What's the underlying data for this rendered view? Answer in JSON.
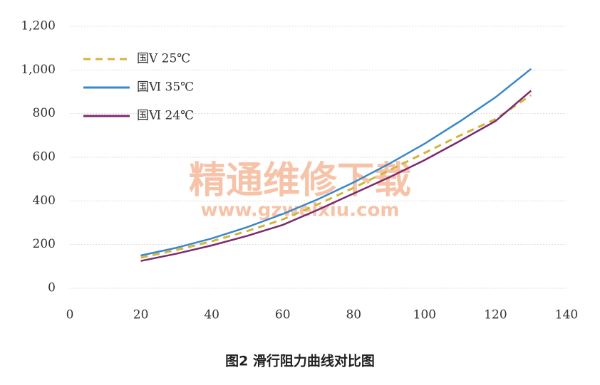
{
  "chart_data": {
    "type": "line",
    "caption": "图2 滑行阻力曲线对比图",
    "watermark": [
      "精通维修下载",
      "www.gzweixiu.com"
    ],
    "x": [
      20,
      30,
      40,
      50,
      60,
      70,
      80,
      90,
      100,
      110,
      120,
      130
    ],
    "series": [
      {
        "name": "国Ⅴ 25℃",
        "color": "#d4b43c",
        "dash": true,
        "values": [
          140,
          175,
          215,
          262,
          315,
          385,
          460,
          540,
          620,
          700,
          775,
          885
        ]
      },
      {
        "name": "国Ⅵ 35℃",
        "color": "#3a87c8",
        "dash": false,
        "values": [
          150,
          185,
          228,
          280,
          340,
          408,
          485,
          570,
          662,
          765,
          875,
          1005
        ]
      },
      {
        "name": "国Ⅵ 24℃",
        "color": "#7b2a6e",
        "dash": false,
        "values": [
          125,
          158,
          196,
          240,
          290,
          360,
          434,
          508,
          587,
          675,
          766,
          905
        ]
      }
    ],
    "xlim": [
      0,
      140
    ],
    "xticks": [
      0,
      20,
      40,
      60,
      80,
      100,
      120,
      140
    ],
    "ylim": [
      0,
      1200
    ],
    "yticks": [
      0,
      200,
      400,
      600,
      800,
      {
        "value": 1000,
        "label": "1,000"
      },
      {
        "value": 1200,
        "label": "1,200"
      }
    ],
    "grid": true,
    "legend": "top-left"
  }
}
